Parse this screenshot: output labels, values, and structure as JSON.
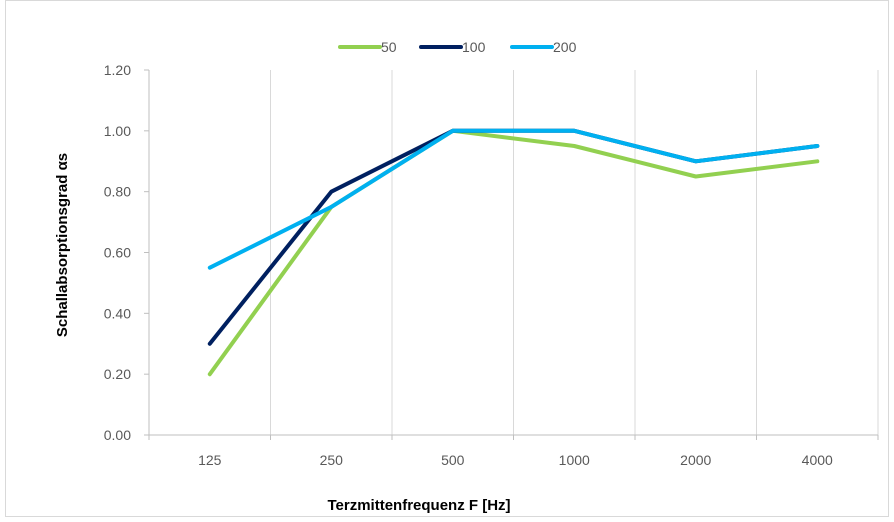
{
  "chart_data": {
    "type": "line",
    "title": "",
    "xlabel": "Terzmittenfrequenz F [Hz]",
    "ylabel": "Schallabsorptionsgrad αs",
    "categories": [
      "125",
      "250",
      "500",
      "1000",
      "2000",
      "4000"
    ],
    "ylim": [
      0,
      1.2
    ],
    "yticks": [
      "0.00",
      "0.20",
      "0.40",
      "0.60",
      "0.80",
      "1.00",
      "1.20"
    ],
    "grid": "vertical",
    "legend_position": "top-center",
    "series": [
      {
        "name": "50",
        "color": "#92d050",
        "values": [
          0.2,
          0.75,
          1.0,
          0.95,
          0.85,
          0.9
        ]
      },
      {
        "name": "100",
        "color": "#002060",
        "values": [
          0.3,
          0.8,
          1.0,
          1.0,
          0.9,
          0.95
        ]
      },
      {
        "name": "200",
        "color": "#00b0f0",
        "values": [
          0.55,
          0.75,
          1.0,
          1.0,
          0.9,
          0.95
        ]
      }
    ]
  }
}
